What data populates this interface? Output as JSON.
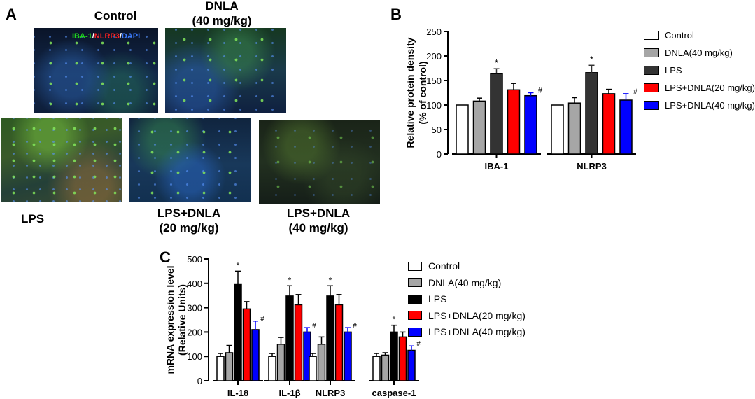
{
  "panel_a": {
    "letter": "A",
    "stain": {
      "iba": "IBA-1",
      "slash1": "/",
      "nlrp": "NLRP3",
      "slash2": "/",
      "dapi": "DAPI"
    },
    "labels": {
      "control": "Control",
      "dnla_1": "DNLA",
      "dnla_2": "(40 mg/kg)",
      "lps": "LPS",
      "lps_d20_1": "LPS+DNLA",
      "lps_d20_2": "(20 mg/kg)",
      "lps_d40_1": "LPS+DNLA",
      "lps_d40_2": "(40 mg/kg)"
    }
  },
  "colors": {
    "control": "#ffffff",
    "dnla": "#a6a6a6",
    "lps_b": "#333333",
    "lps_c": "#000000",
    "lps_dnla20": "#ff0000",
    "lps_dnla40": "#0000ff",
    "stain_green": "#1fd61f",
    "stain_red": "#ff2020",
    "stain_blue": "#3a7bff"
  },
  "chart_data": [
    {
      "panel": "B",
      "type": "bar",
      "ylabel_line1": "Relative protein density",
      "ylabel_line2": "(% of control)",
      "ylim": [
        0,
        250
      ],
      "yticks": [
        0,
        50,
        100,
        150,
        200,
        250
      ],
      "categories": [
        "IBA-1",
        "NLRP3"
      ],
      "series": [
        {
          "name": "Control",
          "values": [
            100,
            100
          ],
          "errors": [
            0,
            0
          ],
          "marks": [
            "",
            ""
          ]
        },
        {
          "name": "DNLA(40 mg/kg)",
          "values": [
            108,
            104
          ],
          "errors": [
            6,
            11
          ],
          "marks": [
            "",
            ""
          ]
        },
        {
          "name": "LPS",
          "values": [
            164,
            166
          ],
          "errors": [
            10,
            15
          ],
          "marks": [
            "*",
            "*"
          ]
        },
        {
          "name": "LPS+DNLA(20 mg/kg)",
          "values": [
            131,
            123
          ],
          "errors": [
            13,
            9
          ],
          "marks": [
            "",
            ""
          ]
        },
        {
          "name": "LPS+DNLA(40 mg/kg)",
          "values": [
            119,
            110
          ],
          "errors": [
            6,
            13
          ],
          "marks": [
            "#",
            "#"
          ]
        }
      ],
      "legend_placement": "right"
    },
    {
      "panel": "C",
      "type": "bar",
      "ylabel_line1": "mRNA expression level",
      "ylabel_line2": "(Relative Units)",
      "ylim": [
        0,
        500
      ],
      "yticks": [
        0,
        100,
        200,
        300,
        400,
        500
      ],
      "categories": [
        "IL-18",
        "IL-1β",
        "NLRP3",
        "caspase-1"
      ],
      "series": [
        {
          "name": "Control",
          "values": [
            100,
            100,
            100,
            100
          ],
          "errors": [
            12,
            12,
            12,
            12
          ],
          "marks": [
            "",
            "",
            "",
            ""
          ]
        },
        {
          "name": "DNLA(40 mg/kg)",
          "values": [
            115,
            150,
            150,
            105
          ],
          "errors": [
            30,
            28,
            30,
            10
          ],
          "marks": [
            "",
            "",
            "",
            ""
          ]
        },
        {
          "name": "LPS",
          "values": [
            395,
            348,
            348,
            200
          ],
          "errors": [
            55,
            42,
            42,
            28
          ],
          "marks": [
            "*",
            "*",
            "*",
            "*"
          ]
        },
        {
          "name": "LPS+DNLA(20 mg/kg)",
          "values": [
            295,
            312,
            312,
            180
          ],
          "errors": [
            30,
            42,
            42,
            20
          ],
          "marks": [
            "",
            "",
            "",
            ""
          ]
        },
        {
          "name": "LPS+DNLA(40 mg/kg)",
          "values": [
            210,
            200,
            200,
            125
          ],
          "errors": [
            35,
            18,
            18,
            18
          ],
          "marks": [
            "#",
            "#",
            "#",
            "#"
          ]
        }
      ],
      "legend_placement": "right"
    }
  ]
}
